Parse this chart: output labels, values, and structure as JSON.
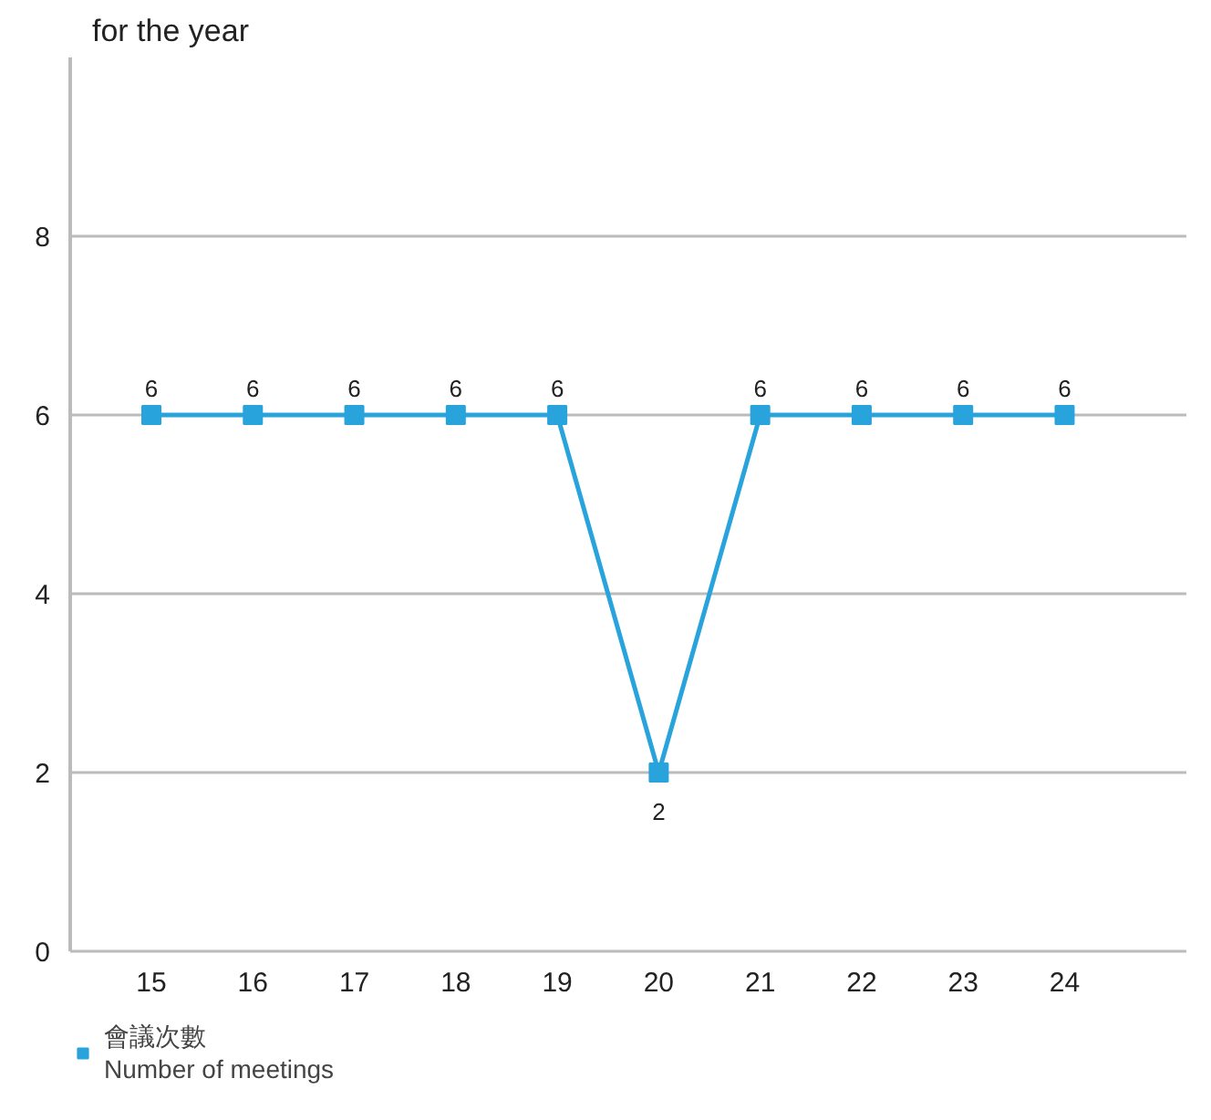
{
  "chart_data": {
    "type": "line",
    "title": "for the year",
    "categories": [
      "15",
      "16",
      "17",
      "18",
      "19",
      "20",
      "21",
      "22",
      "23",
      "24"
    ],
    "series": [
      {
        "name": "會議次數\nNumber of meetings",
        "color": "#29a3dc",
        "values": [
          6,
          6,
          6,
          6,
          6,
          2,
          6,
          6,
          6,
          6
        ]
      }
    ],
    "ylim": [
      0,
      10
    ],
    "yticks": [
      0,
      2,
      4,
      6,
      8
    ],
    "grid": "y",
    "legend": "bottom left",
    "marker": "square",
    "line_style": "solid",
    "data_labels": true
  }
}
